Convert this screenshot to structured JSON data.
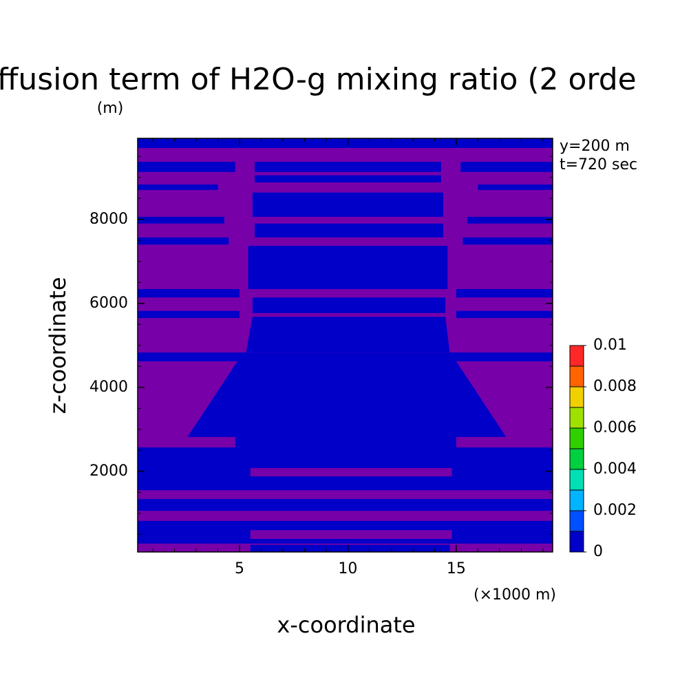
{
  "chart_data": {
    "type": "contour",
    "title": "ffusion term of H2O-g mixing ratio (2 orde",
    "y_unit": "(m)",
    "x_unit": "(×1000 m)",
    "xlabel": "x-coordinate",
    "ylabel": "z-coordinate",
    "annotations": [
      "y=200 m",
      "t=720 sec"
    ],
    "xlim": [
      0.3,
      19.45
    ],
    "ylim": [
      80,
      9930
    ],
    "xticks": [
      5,
      10,
      15
    ],
    "yticks": [
      2000,
      4000,
      6000,
      8000
    ],
    "xminorticks": [
      1,
      2,
      3,
      4,
      6,
      7,
      8,
      9,
      11,
      12,
      13,
      14,
      16,
      17,
      18,
      19
    ],
    "yminorticks": [
      500,
      1000,
      1500,
      2500,
      3000,
      3500,
      4500,
      5000,
      5500,
      6500,
      7000,
      7500,
      8500,
      9000,
      9500
    ],
    "background_color": "#7800a8",
    "field": {
      "color": "#0000c8",
      "rects": [
        [
          0.3,
          19.45,
          9700,
          9930
        ],
        [
          0.3,
          4.8,
          9130,
          9370
        ],
        [
          5.7,
          14.3,
          9130,
          9370
        ],
        [
          15.2,
          19.45,
          9130,
          9370
        ],
        [
          5.7,
          14.3,
          8880,
          9050
        ],
        [
          0.3,
          4.0,
          8700,
          8830
        ],
        [
          16.0,
          19.45,
          8700,
          8830
        ],
        [
          5.6,
          14.4,
          8060,
          8640
        ],
        [
          0.3,
          4.3,
          7900,
          8060
        ],
        [
          15.5,
          19.45,
          7900,
          8060
        ],
        [
          5.7,
          14.4,
          7570,
          7900
        ],
        [
          0.3,
          4.5,
          7400,
          7570
        ],
        [
          15.3,
          19.45,
          7400,
          7570
        ],
        [
          5.4,
          14.6,
          6340,
          7370
        ],
        [
          0.3,
          5.0,
          6140,
          6340
        ],
        [
          15.0,
          19.45,
          6140,
          6340
        ],
        [
          5.6,
          14.5,
          5770,
          6140
        ],
        [
          0.3,
          5.0,
          5650,
          5820
        ],
        [
          15.0,
          19.45,
          5650,
          5820
        ],
        [
          0.3,
          19.45,
          4620,
          4830
        ],
        [
          4.8,
          15.0,
          2570,
          2820
        ],
        [
          0.3,
          19.45,
          2080,
          2570
        ],
        [
          0.3,
          5.5,
          1880,
          2080
        ],
        [
          14.8,
          19.45,
          1880,
          2080
        ],
        [
          0.3,
          19.45,
          1550,
          1880
        ],
        [
          0.3,
          19.45,
          1060,
          1340
        ],
        [
          0.3,
          19.45,
          600,
          820
        ],
        [
          0.3,
          5.5,
          390,
          600
        ],
        [
          14.8,
          19.45,
          390,
          600
        ],
        [
          0.3,
          19.45,
          280,
          390
        ],
        [
          5.5,
          14.7,
          80,
          250
        ]
      ],
      "polygons": [
        [
          [
            5.6,
            5680
          ],
          [
            14.5,
            5680
          ],
          [
            14.7,
            4830
          ],
          [
            5.3,
            4830
          ]
        ],
        [
          [
            4.9,
            4620
          ],
          [
            15.0,
            4620
          ],
          [
            17.3,
            2820
          ],
          [
            2.6,
            2820
          ]
        ]
      ]
    },
    "colorbar": {
      "levels": [
        0,
        0.001,
        0.002,
        0.003,
        0.004,
        0.005,
        0.006,
        0.007,
        0.008,
        0.009,
        0.01
      ],
      "colors": [
        "#0000c8",
        "#0050ff",
        "#00b4ff",
        "#00e0b4",
        "#00d040",
        "#30d000",
        "#a0e000",
        "#f0d000",
        "#ff6400",
        "#ff2828"
      ],
      "ticks": [
        0,
        0.002,
        0.004,
        0.006,
        0.008,
        0.01
      ]
    }
  }
}
